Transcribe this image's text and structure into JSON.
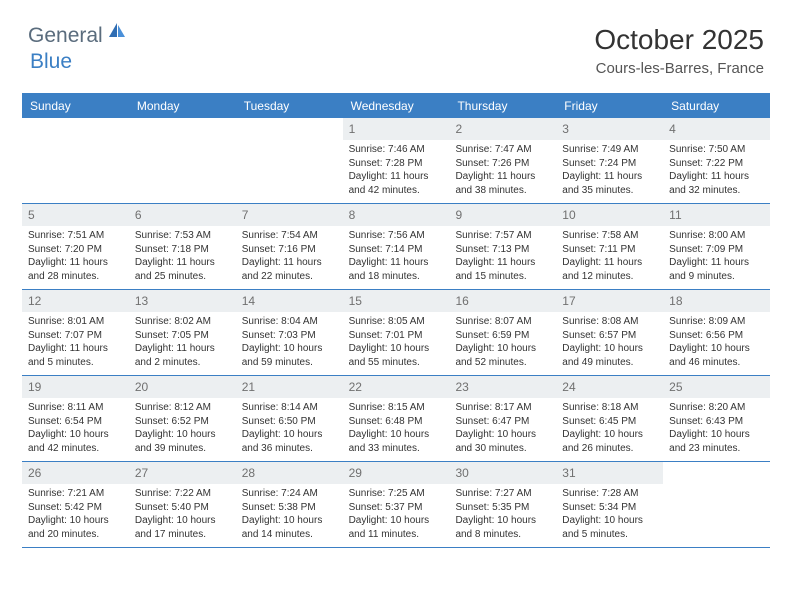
{
  "logo": {
    "part1": "General",
    "part2": "Blue"
  },
  "title": "October 2025",
  "location": "Cours-les-Barres, France",
  "colors": {
    "header_bg": "#3b7fc4",
    "header_text": "#ffffff",
    "daynum_bg": "#eceff1",
    "daynum_text": "#707070",
    "border": "#3b7fc4",
    "body_text": "#333333",
    "logo_gray": "#5a6c7d",
    "logo_blue": "#3b7fc4"
  },
  "day_headers": [
    "Sunday",
    "Monday",
    "Tuesday",
    "Wednesday",
    "Thursday",
    "Friday",
    "Saturday"
  ],
  "weeks": [
    [
      {
        "empty": true
      },
      {
        "empty": true
      },
      {
        "empty": true
      },
      {
        "day": "1",
        "sunrise": "Sunrise: 7:46 AM",
        "sunset": "Sunset: 7:28 PM",
        "daylight1": "Daylight: 11 hours",
        "daylight2": "and 42 minutes."
      },
      {
        "day": "2",
        "sunrise": "Sunrise: 7:47 AM",
        "sunset": "Sunset: 7:26 PM",
        "daylight1": "Daylight: 11 hours",
        "daylight2": "and 38 minutes."
      },
      {
        "day": "3",
        "sunrise": "Sunrise: 7:49 AM",
        "sunset": "Sunset: 7:24 PM",
        "daylight1": "Daylight: 11 hours",
        "daylight2": "and 35 minutes."
      },
      {
        "day": "4",
        "sunrise": "Sunrise: 7:50 AM",
        "sunset": "Sunset: 7:22 PM",
        "daylight1": "Daylight: 11 hours",
        "daylight2": "and 32 minutes."
      }
    ],
    [
      {
        "day": "5",
        "sunrise": "Sunrise: 7:51 AM",
        "sunset": "Sunset: 7:20 PM",
        "daylight1": "Daylight: 11 hours",
        "daylight2": "and 28 minutes."
      },
      {
        "day": "6",
        "sunrise": "Sunrise: 7:53 AM",
        "sunset": "Sunset: 7:18 PM",
        "daylight1": "Daylight: 11 hours",
        "daylight2": "and 25 minutes."
      },
      {
        "day": "7",
        "sunrise": "Sunrise: 7:54 AM",
        "sunset": "Sunset: 7:16 PM",
        "daylight1": "Daylight: 11 hours",
        "daylight2": "and 22 minutes."
      },
      {
        "day": "8",
        "sunrise": "Sunrise: 7:56 AM",
        "sunset": "Sunset: 7:14 PM",
        "daylight1": "Daylight: 11 hours",
        "daylight2": "and 18 minutes."
      },
      {
        "day": "9",
        "sunrise": "Sunrise: 7:57 AM",
        "sunset": "Sunset: 7:13 PM",
        "daylight1": "Daylight: 11 hours",
        "daylight2": "and 15 minutes."
      },
      {
        "day": "10",
        "sunrise": "Sunrise: 7:58 AM",
        "sunset": "Sunset: 7:11 PM",
        "daylight1": "Daylight: 11 hours",
        "daylight2": "and 12 minutes."
      },
      {
        "day": "11",
        "sunrise": "Sunrise: 8:00 AM",
        "sunset": "Sunset: 7:09 PM",
        "daylight1": "Daylight: 11 hours",
        "daylight2": "and 9 minutes."
      }
    ],
    [
      {
        "day": "12",
        "sunrise": "Sunrise: 8:01 AM",
        "sunset": "Sunset: 7:07 PM",
        "daylight1": "Daylight: 11 hours",
        "daylight2": "and 5 minutes."
      },
      {
        "day": "13",
        "sunrise": "Sunrise: 8:02 AM",
        "sunset": "Sunset: 7:05 PM",
        "daylight1": "Daylight: 11 hours",
        "daylight2": "and 2 minutes."
      },
      {
        "day": "14",
        "sunrise": "Sunrise: 8:04 AM",
        "sunset": "Sunset: 7:03 PM",
        "daylight1": "Daylight: 10 hours",
        "daylight2": "and 59 minutes."
      },
      {
        "day": "15",
        "sunrise": "Sunrise: 8:05 AM",
        "sunset": "Sunset: 7:01 PM",
        "daylight1": "Daylight: 10 hours",
        "daylight2": "and 55 minutes."
      },
      {
        "day": "16",
        "sunrise": "Sunrise: 8:07 AM",
        "sunset": "Sunset: 6:59 PM",
        "daylight1": "Daylight: 10 hours",
        "daylight2": "and 52 minutes."
      },
      {
        "day": "17",
        "sunrise": "Sunrise: 8:08 AM",
        "sunset": "Sunset: 6:57 PM",
        "daylight1": "Daylight: 10 hours",
        "daylight2": "and 49 minutes."
      },
      {
        "day": "18",
        "sunrise": "Sunrise: 8:09 AM",
        "sunset": "Sunset: 6:56 PM",
        "daylight1": "Daylight: 10 hours",
        "daylight2": "and 46 minutes."
      }
    ],
    [
      {
        "day": "19",
        "sunrise": "Sunrise: 8:11 AM",
        "sunset": "Sunset: 6:54 PM",
        "daylight1": "Daylight: 10 hours",
        "daylight2": "and 42 minutes."
      },
      {
        "day": "20",
        "sunrise": "Sunrise: 8:12 AM",
        "sunset": "Sunset: 6:52 PM",
        "daylight1": "Daylight: 10 hours",
        "daylight2": "and 39 minutes."
      },
      {
        "day": "21",
        "sunrise": "Sunrise: 8:14 AM",
        "sunset": "Sunset: 6:50 PM",
        "daylight1": "Daylight: 10 hours",
        "daylight2": "and 36 minutes."
      },
      {
        "day": "22",
        "sunrise": "Sunrise: 8:15 AM",
        "sunset": "Sunset: 6:48 PM",
        "daylight1": "Daylight: 10 hours",
        "daylight2": "and 33 minutes."
      },
      {
        "day": "23",
        "sunrise": "Sunrise: 8:17 AM",
        "sunset": "Sunset: 6:47 PM",
        "daylight1": "Daylight: 10 hours",
        "daylight2": "and 30 minutes."
      },
      {
        "day": "24",
        "sunrise": "Sunrise: 8:18 AM",
        "sunset": "Sunset: 6:45 PM",
        "daylight1": "Daylight: 10 hours",
        "daylight2": "and 26 minutes."
      },
      {
        "day": "25",
        "sunrise": "Sunrise: 8:20 AM",
        "sunset": "Sunset: 6:43 PM",
        "daylight1": "Daylight: 10 hours",
        "daylight2": "and 23 minutes."
      }
    ],
    [
      {
        "day": "26",
        "sunrise": "Sunrise: 7:21 AM",
        "sunset": "Sunset: 5:42 PM",
        "daylight1": "Daylight: 10 hours",
        "daylight2": "and 20 minutes."
      },
      {
        "day": "27",
        "sunrise": "Sunrise: 7:22 AM",
        "sunset": "Sunset: 5:40 PM",
        "daylight1": "Daylight: 10 hours",
        "daylight2": "and 17 minutes."
      },
      {
        "day": "28",
        "sunrise": "Sunrise: 7:24 AM",
        "sunset": "Sunset: 5:38 PM",
        "daylight1": "Daylight: 10 hours",
        "daylight2": "and 14 minutes."
      },
      {
        "day": "29",
        "sunrise": "Sunrise: 7:25 AM",
        "sunset": "Sunset: 5:37 PM",
        "daylight1": "Daylight: 10 hours",
        "daylight2": "and 11 minutes."
      },
      {
        "day": "30",
        "sunrise": "Sunrise: 7:27 AM",
        "sunset": "Sunset: 5:35 PM",
        "daylight1": "Daylight: 10 hours",
        "daylight2": "and 8 minutes."
      },
      {
        "day": "31",
        "sunrise": "Sunrise: 7:28 AM",
        "sunset": "Sunset: 5:34 PM",
        "daylight1": "Daylight: 10 hours",
        "daylight2": "and 5 minutes."
      },
      {
        "empty": true
      }
    ]
  ]
}
